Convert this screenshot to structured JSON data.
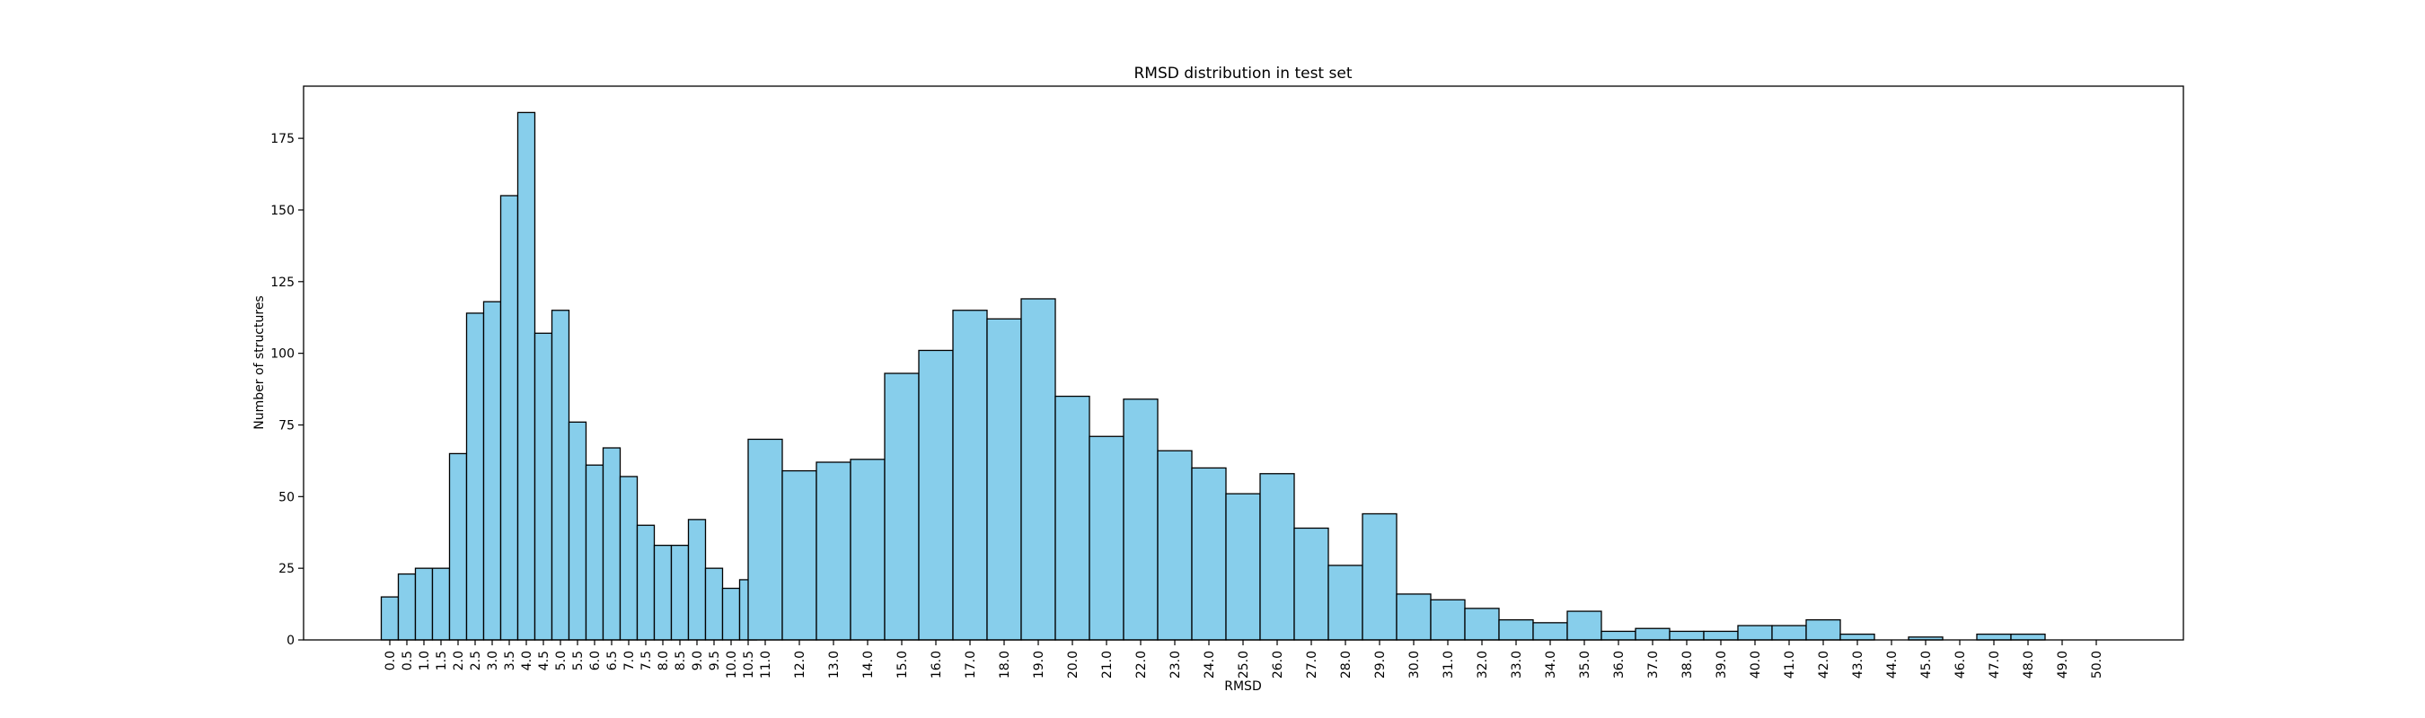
{
  "chart_data": {
    "type": "bar",
    "title": "RMSD distribution in test set",
    "xlabel": "RMSD",
    "ylabel": "Number of structures",
    "bin_edges": [
      0.0,
      0.5,
      1.0,
      1.5,
      2.0,
      2.5,
      3.0,
      3.5,
      4.0,
      4.5,
      5.0,
      5.5,
      6.0,
      6.5,
      7.0,
      7.5,
      8.0,
      8.5,
      9.0,
      9.5,
      10.0,
      10.5,
      11.0,
      12.0,
      13.0,
      14.0,
      15.0,
      16.0,
      17.0,
      18.0,
      19.0,
      20.0,
      21.0,
      22.0,
      23.0,
      24.0,
      25.0,
      26.0,
      27.0,
      28.0,
      29.0,
      30.0,
      31.0,
      32.0,
      33.0,
      34.0,
      35.0,
      36.0,
      37.0,
      38.0,
      39.0,
      40.0,
      41.0,
      42.0,
      43.0,
      44.0,
      45.0,
      46.0,
      47.0,
      48.0,
      49.0,
      50.0
    ],
    "values": [
      15,
      23,
      25,
      25,
      65,
      114,
      118,
      155,
      184,
      107,
      115,
      76,
      61,
      67,
      57,
      40,
      33,
      33,
      42,
      25,
      18,
      21,
      70,
      59,
      62,
      63,
      93,
      101,
      115,
      112,
      119,
      85,
      71,
      84,
      66,
      60,
      51,
      58,
      39,
      26,
      44,
      16,
      14,
      11,
      7,
      6,
      10,
      3,
      4,
      3,
      3,
      5,
      5,
      7,
      2,
      0,
      1,
      0,
      2,
      2,
      0
    ],
    "x_ticks": [
      "0.0",
      "0.5",
      "1.0",
      "1.5",
      "2.0",
      "2.5",
      "3.0",
      "3.5",
      "4.0",
      "4.5",
      "5.0",
      "5.5",
      "6.0",
      "6.5",
      "7.0",
      "7.5",
      "8.0",
      "8.5",
      "9.0",
      "9.5",
      "10.0",
      "10.5",
      "11.0",
      "12.0",
      "13.0",
      "14.0",
      "15.0",
      "16.0",
      "17.0",
      "18.0",
      "19.0",
      "20.0",
      "21.0",
      "22.0",
      "23.0",
      "24.0",
      "25.0",
      "26.0",
      "27.0",
      "28.0",
      "29.0",
      "30.0",
      "31.0",
      "32.0",
      "33.0",
      "34.0",
      "35.0",
      "36.0",
      "37.0",
      "38.0",
      "39.0",
      "40.0",
      "41.0",
      "42.0",
      "43.0",
      "44.0",
      "45.0",
      "46.0",
      "47.0",
      "48.0",
      "49.0",
      "50.0"
    ],
    "y_ticks": [
      0,
      25,
      50,
      75,
      100,
      125,
      150,
      175
    ],
    "ylim": [
      0,
      193.2
    ],
    "grid": false,
    "colors": {
      "bar_fill": "#87ceeb",
      "bar_edge": "#000000"
    }
  }
}
